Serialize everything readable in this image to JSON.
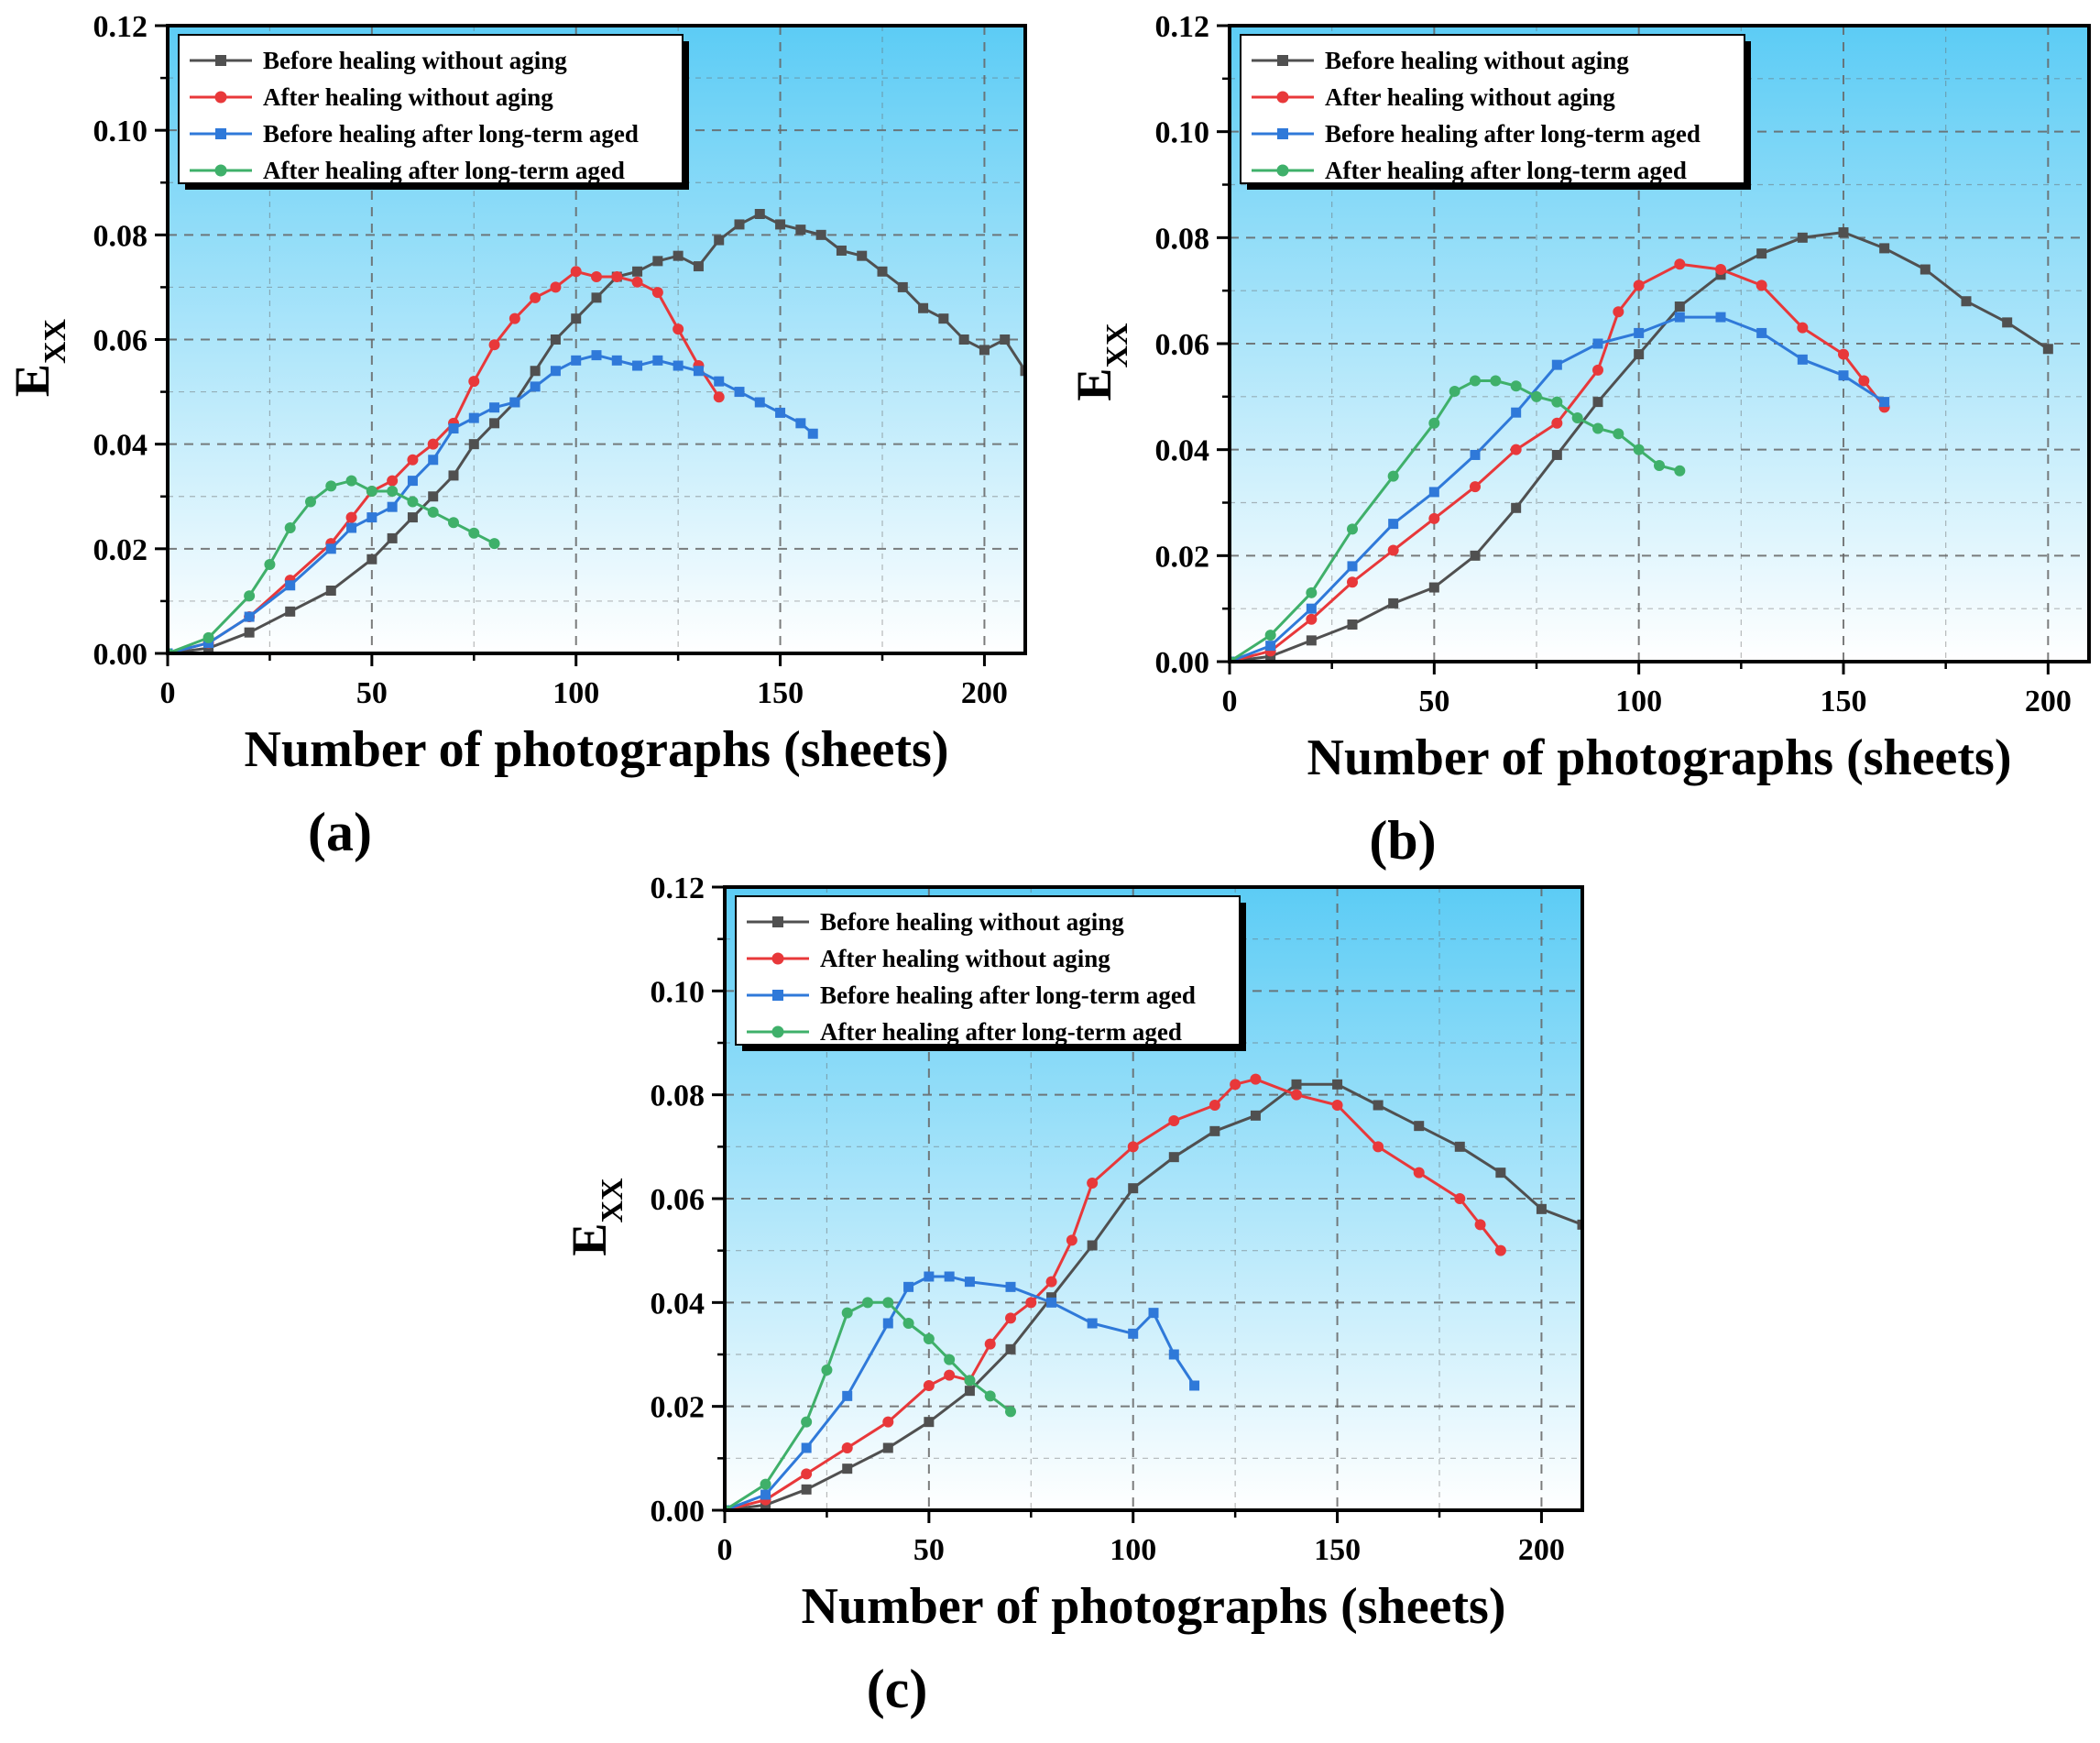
{
  "figure": {
    "colors": {
      "black_series": "#505050",
      "red_series": "#e8383a",
      "blue_series": "#2f79d9",
      "green_series": "#3fb06a",
      "bg_top": "#5cccf5",
      "bg_bottom": "#ffffff",
      "grid": "#666666"
    }
  },
  "chart_data": [
    {
      "panel": "(a)",
      "type": "line",
      "xlabel": "Number of photographs (sheets)",
      "ylabel": "E",
      "ylabel_sub": "XX",
      "xlim": [
        0,
        210
      ],
      "ylim": [
        0,
        0.12
      ],
      "xticks": [
        "0",
        "50",
        "100",
        "150",
        "200"
      ],
      "yticks": [
        "0.00",
        "0.02",
        "0.04",
        "0.06",
        "0.08",
        "0.10",
        "0.12"
      ],
      "grid": true,
      "legend": "top-left",
      "series": [
        {
          "name": "Before healing without aging",
          "color": "#505050",
          "marker": "square",
          "x": [
            0,
            10,
            20,
            30,
            40,
            50,
            55,
            60,
            65,
            70,
            75,
            80,
            85,
            90,
            95,
            100,
            105,
            110,
            115,
            120,
            125,
            130,
            135,
            140,
            145,
            150,
            155,
            160,
            165,
            170,
            175,
            180,
            185,
            190,
            195,
            200,
            205,
            210
          ],
          "y": [
            0,
            0.001,
            0.004,
            0.008,
            0.012,
            0.018,
            0.022,
            0.026,
            0.03,
            0.034,
            0.04,
            0.044,
            0.048,
            0.054,
            0.06,
            0.064,
            0.068,
            0.072,
            0.073,
            0.075,
            0.076,
            0.074,
            0.079,
            0.082,
            0.084,
            0.082,
            0.081,
            0.08,
            0.077,
            0.076,
            0.073,
            0.07,
            0.066,
            0.064,
            0.06,
            0.058,
            0.06,
            0.054
          ]
        },
        {
          "name": "After healing without aging",
          "color": "#e8383a",
          "marker": "circle",
          "x": [
            0,
            10,
            20,
            30,
            40,
            45,
            50,
            55,
            60,
            65,
            70,
            75,
            80,
            85,
            90,
            95,
            100,
            105,
            110,
            115,
            120,
            125,
            130,
            135
          ],
          "y": [
            0,
            0.002,
            0.007,
            0.014,
            0.021,
            0.026,
            0.031,
            0.033,
            0.037,
            0.04,
            0.044,
            0.052,
            0.059,
            0.064,
            0.068,
            0.07,
            0.073,
            0.072,
            0.072,
            0.071,
            0.069,
            0.062,
            0.055,
            0.049
          ]
        },
        {
          "name": "Before healing after long-term aged",
          "color": "#2f79d9",
          "marker": "square",
          "x": [
            0,
            10,
            20,
            30,
            40,
            45,
            50,
            55,
            60,
            65,
            70,
            75,
            80,
            85,
            90,
            95,
            100,
            105,
            110,
            115,
            120,
            125,
            130,
            135,
            140,
            145,
            150,
            155,
            158
          ],
          "y": [
            0,
            0.002,
            0.007,
            0.013,
            0.02,
            0.024,
            0.026,
            0.028,
            0.033,
            0.037,
            0.043,
            0.045,
            0.047,
            0.048,
            0.051,
            0.054,
            0.056,
            0.057,
            0.056,
            0.055,
            0.056,
            0.055,
            0.054,
            0.052,
            0.05,
            0.048,
            0.046,
            0.044,
            0.042
          ]
        },
        {
          "name": "After healing after long-term aged",
          "color": "#3fb06a",
          "marker": "circle",
          "x": [
            0,
            10,
            20,
            25,
            30,
            35,
            40,
            45,
            50,
            55,
            60,
            65,
            70,
            75,
            80
          ],
          "y": [
            0,
            0.003,
            0.011,
            0.017,
            0.024,
            0.029,
            0.032,
            0.033,
            0.031,
            0.031,
            0.029,
            0.027,
            0.025,
            0.023,
            0.021
          ]
        }
      ]
    },
    {
      "panel": "(b)",
      "type": "line",
      "xlabel": "Number of photographs (sheets)",
      "ylabel": "E",
      "ylabel_sub": "XX",
      "xlim": [
        0,
        210
      ],
      "ylim": [
        0,
        0.12
      ],
      "xticks": [
        "0",
        "50",
        "100",
        "150",
        "200"
      ],
      "yticks": [
        "0.00",
        "0.02",
        "0.04",
        "0.06",
        "0.08",
        "0.10",
        "0.12"
      ],
      "grid": true,
      "legend": "top-left",
      "series": [
        {
          "name": "Before healing without aging",
          "color": "#505050",
          "marker": "square",
          "x": [
            0,
            10,
            20,
            30,
            40,
            50,
            60,
            70,
            80,
            90,
            100,
            110,
            120,
            130,
            140,
            150,
            160,
            170,
            180,
            190,
            200
          ],
          "y": [
            0,
            0.001,
            0.004,
            0.007,
            0.011,
            0.014,
            0.02,
            0.029,
            0.039,
            0.049,
            0.058,
            0.067,
            0.073,
            0.077,
            0.08,
            0.081,
            0.078,
            0.074,
            0.068,
            0.064,
            0.059
          ]
        },
        {
          "name": "After healing without aging",
          "color": "#e8383a",
          "marker": "circle",
          "x": [
            0,
            10,
            20,
            30,
            40,
            50,
            60,
            70,
            80,
            90,
            95,
            100,
            110,
            120,
            130,
            140,
            150,
            155,
            160
          ],
          "y": [
            0,
            0.002,
            0.008,
            0.015,
            0.021,
            0.027,
            0.033,
            0.04,
            0.045,
            0.055,
            0.066,
            0.071,
            0.075,
            0.074,
            0.071,
            0.063,
            0.058,
            0.053,
            0.048
          ]
        },
        {
          "name": "Before healing after long-term aged",
          "color": "#2f79d9",
          "marker": "square",
          "x": [
            0,
            10,
            20,
            30,
            40,
            50,
            60,
            70,
            80,
            90,
            100,
            110,
            120,
            130,
            140,
            150,
            160
          ],
          "y": [
            0,
            0.003,
            0.01,
            0.018,
            0.026,
            0.032,
            0.039,
            0.047,
            0.056,
            0.06,
            0.062,
            0.065,
            0.065,
            0.062,
            0.057,
            0.054,
            0.049
          ]
        },
        {
          "name": "After healing after long-term aged",
          "color": "#3fb06a",
          "marker": "circle",
          "x": [
            0,
            10,
            20,
            30,
            40,
            50,
            55,
            60,
            65,
            70,
            75,
            80,
            85,
            90,
            95,
            100,
            105,
            110
          ],
          "y": [
            0,
            0.005,
            0.013,
            0.025,
            0.035,
            0.045,
            0.051,
            0.053,
            0.053,
            0.052,
            0.05,
            0.049,
            0.046,
            0.044,
            0.043,
            0.04,
            0.037,
            0.036
          ]
        }
      ]
    },
    {
      "panel": "(c)",
      "type": "line",
      "xlabel": "Number of photographs (sheets)",
      "ylabel": "E",
      "ylabel_sub": "XX",
      "xlim": [
        0,
        210
      ],
      "ylim": [
        0,
        0.12
      ],
      "xticks": [
        "0",
        "50",
        "100",
        "150",
        "200"
      ],
      "yticks": [
        "0.00",
        "0.02",
        "0.04",
        "0.06",
        "0.08",
        "0.10",
        "0.12"
      ],
      "grid": true,
      "legend": "top-left",
      "series": [
        {
          "name": "Before healing without aging",
          "color": "#505050",
          "marker": "square",
          "x": [
            0,
            10,
            20,
            30,
            40,
            50,
            60,
            70,
            80,
            90,
            100,
            110,
            120,
            130,
            140,
            150,
            160,
            170,
            180,
            190,
            200,
            210
          ],
          "y": [
            0,
            0.001,
            0.004,
            0.008,
            0.012,
            0.017,
            0.023,
            0.031,
            0.041,
            0.051,
            0.062,
            0.068,
            0.073,
            0.076,
            0.082,
            0.082,
            0.078,
            0.074,
            0.07,
            0.065,
            0.058,
            0.055
          ]
        },
        {
          "name": "After healing without aging",
          "color": "#e8383a",
          "marker": "circle",
          "x": [
            0,
            10,
            20,
            30,
            40,
            50,
            55,
            60,
            65,
            70,
            75,
            80,
            85,
            90,
            100,
            110,
            120,
            125,
            130,
            140,
            150,
            160,
            170,
            180,
            185,
            190
          ],
          "y": [
            0,
            0.002,
            0.007,
            0.012,
            0.017,
            0.024,
            0.026,
            0.025,
            0.032,
            0.037,
            0.04,
            0.044,
            0.052,
            0.063,
            0.07,
            0.075,
            0.078,
            0.082,
            0.083,
            0.08,
            0.078,
            0.07,
            0.065,
            0.06,
            0.055,
            0.05
          ]
        },
        {
          "name": "Before healing after long-term aged",
          "color": "#2f79d9",
          "marker": "square",
          "x": [
            0,
            10,
            20,
            30,
            40,
            45,
            50,
            55,
            60,
            70,
            80,
            90,
            100,
            105,
            110,
            115
          ],
          "y": [
            0,
            0.003,
            0.012,
            0.022,
            0.036,
            0.043,
            0.045,
            0.045,
            0.044,
            0.043,
            0.04,
            0.036,
            0.034,
            0.038,
            0.03,
            0.024
          ]
        },
        {
          "name": "After healing after long-term aged",
          "color": "#3fb06a",
          "marker": "circle",
          "x": [
            0,
            10,
            20,
            25,
            30,
            35,
            40,
            45,
            50,
            55,
            60,
            65,
            70
          ],
          "y": [
            0,
            0.005,
            0.017,
            0.027,
            0.038,
            0.04,
            0.04,
            0.036,
            0.033,
            0.029,
            0.025,
            0.022,
            0.019
          ]
        }
      ]
    }
  ]
}
